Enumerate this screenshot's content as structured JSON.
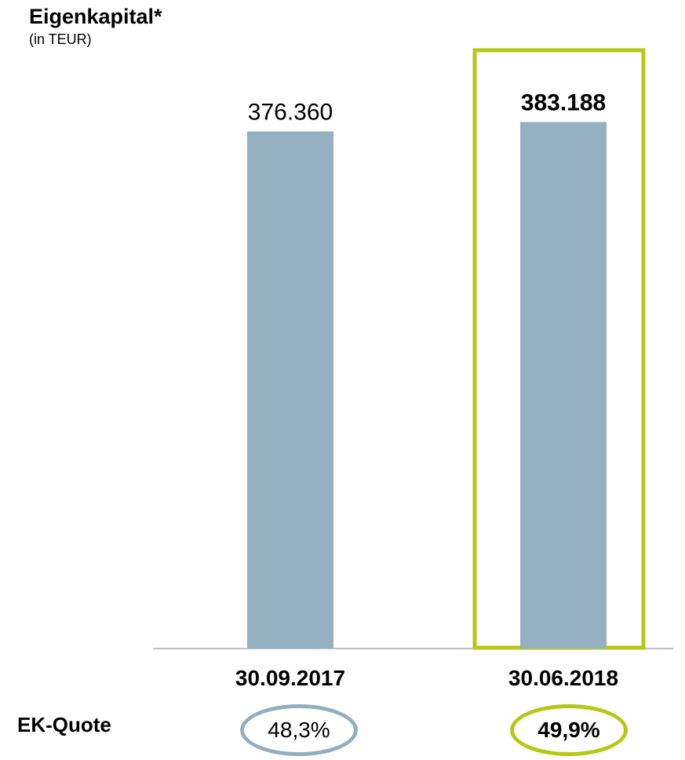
{
  "title": "Eigenkapital*",
  "subtitle": "(in TEUR)",
  "ek_quote": {
    "label": "EK-Quote",
    "values": [
      "48,3%",
      "49,9%"
    ]
  },
  "colors": {
    "bar": "#95B1C1",
    "highlight": "#B5C815",
    "axis": "#BFBFBF",
    "quote_1": "#92AFC0",
    "quote_2": "#B5C815"
  },
  "chart_data": {
    "type": "bar",
    "title": "Eigenkapital*",
    "ylabel": "(in TEUR)",
    "categories": [
      "30.09.2017",
      "30.06.2018"
    ],
    "values": [
      376360,
      383188
    ],
    "value_labels": [
      "376.360",
      "383.188"
    ],
    "highlighted_category": "30.06.2018",
    "ylim": [
      0,
      400000
    ],
    "grid": false,
    "legend": "none"
  }
}
